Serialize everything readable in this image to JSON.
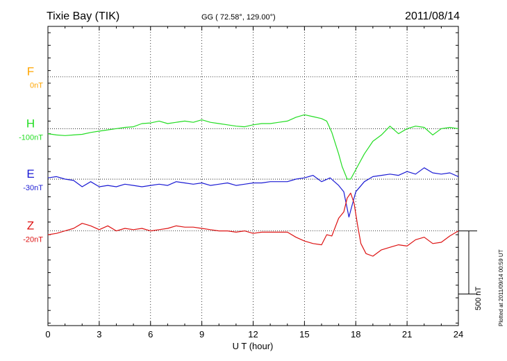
{
  "chart_data": {
    "type": "line",
    "title": "Tixie Bay (TIK)",
    "subtitle": "GG ( 72.58°, 129.00°)",
    "date": "2011/08/14",
    "xlabel": "U T (hour)",
    "xlim": [
      0,
      24
    ],
    "xticks": [
      "0",
      "3",
      "6",
      "9",
      "12",
      "15",
      "18",
      "21",
      "24"
    ],
    "scale_label": "500 nT",
    "plotted_label": "Plotted at 2011/09/14 00:59 UT",
    "series": [
      {
        "name": "F",
        "baseline_label": "0nT",
        "color": "#ffa500",
        "x": [],
        "y": []
      },
      {
        "name": "H",
        "baseline_label": "-100nT",
        "color": "#22dd22",
        "x": [
          0,
          0.5,
          1,
          1.5,
          2,
          2.5,
          3,
          3.5,
          4,
          4.5,
          5,
          5.5,
          6,
          6.5,
          7,
          7.5,
          8,
          8.5,
          9,
          9.5,
          10,
          10.5,
          11,
          11.5,
          12,
          12.5,
          13,
          13.5,
          14,
          14.5,
          15,
          15.5,
          16,
          16.3,
          16.6,
          17,
          17.2,
          17.5,
          17.7,
          17.9,
          18.1,
          18.5,
          19,
          19.5,
          20,
          20.5,
          21,
          21.5,
          22,
          22.5,
          23,
          23.5,
          24
        ],
        "y": [
          -40,
          -50,
          -55,
          -50,
          -45,
          -30,
          -20,
          -10,
          0,
          10,
          15,
          40,
          45,
          60,
          40,
          50,
          60,
          50,
          70,
          50,
          40,
          30,
          20,
          15,
          30,
          40,
          40,
          50,
          60,
          90,
          110,
          95,
          80,
          60,
          -30,
          -200,
          -300,
          -400,
          -400,
          -350,
          -300,
          -200,
          -100,
          -50,
          20,
          -40,
          0,
          20,
          10,
          -50,
          0,
          10,
          0
        ]
      },
      {
        "name": "E",
        "baseline_label": "-30nT",
        "color": "#1a1ad4",
        "x": [
          0,
          0.5,
          1,
          1.5,
          2,
          2.5,
          3,
          3.5,
          4,
          4.5,
          5,
          5.5,
          6,
          6.5,
          7,
          7.5,
          8,
          8.5,
          9,
          9.5,
          10,
          10.5,
          11,
          11.5,
          12,
          12.5,
          13,
          13.5,
          14,
          14.5,
          15,
          15.5,
          16,
          16.5,
          17,
          17.3,
          17.6,
          17.8,
          18,
          18.5,
          19,
          19.5,
          20,
          20.5,
          21,
          21.5,
          22,
          22.5,
          23,
          23.5,
          24
        ],
        "y": [
          10,
          20,
          0,
          -10,
          -60,
          -20,
          -60,
          -50,
          -60,
          -40,
          -50,
          -60,
          -50,
          -40,
          -50,
          -20,
          -30,
          -40,
          -30,
          -50,
          -40,
          -30,
          -50,
          -40,
          -30,
          -30,
          -20,
          -20,
          -20,
          0,
          10,
          30,
          -20,
          10,
          -50,
          -100,
          -300,
          -200,
          -100,
          -20,
          20,
          30,
          40,
          30,
          60,
          40,
          90,
          50,
          40,
          50,
          20
        ]
      },
      {
        "name": "Z",
        "baseline_label": "-20nT",
        "color": "#dd1111",
        "x": [
          0,
          0.5,
          1,
          1.5,
          2,
          2.5,
          3,
          3.5,
          4,
          4.5,
          5,
          5.5,
          6,
          6.5,
          7,
          7.5,
          8,
          8.5,
          9,
          9.5,
          10,
          10.5,
          11,
          11.5,
          12,
          12.5,
          13,
          13.5,
          14,
          14.5,
          15,
          15.5,
          16,
          16.3,
          16.6,
          17,
          17.3,
          17.5,
          17.7,
          17.9,
          18.1,
          18.3,
          18.6,
          19,
          19.5,
          20,
          20.5,
          21,
          21.5,
          22,
          22.5,
          23,
          23.5,
          24
        ],
        "y": [
          -30,
          -20,
          0,
          20,
          60,
          40,
          10,
          40,
          0,
          20,
          10,
          20,
          0,
          10,
          20,
          40,
          30,
          30,
          20,
          10,
          0,
          0,
          -10,
          0,
          -20,
          -10,
          -10,
          -10,
          -10,
          -50,
          -80,
          -100,
          -110,
          -30,
          -40,
          100,
          150,
          260,
          300,
          220,
          50,
          -100,
          -180,
          -200,
          -150,
          -130,
          -110,
          -120,
          -70,
          -50,
          -100,
          -90,
          -40,
          0
        ]
      }
    ],
    "ylim_nT": [
      -1120,
      1250
    ],
    "baselines_nT": [
      850,
      440,
      40,
      -370
    ]
  }
}
